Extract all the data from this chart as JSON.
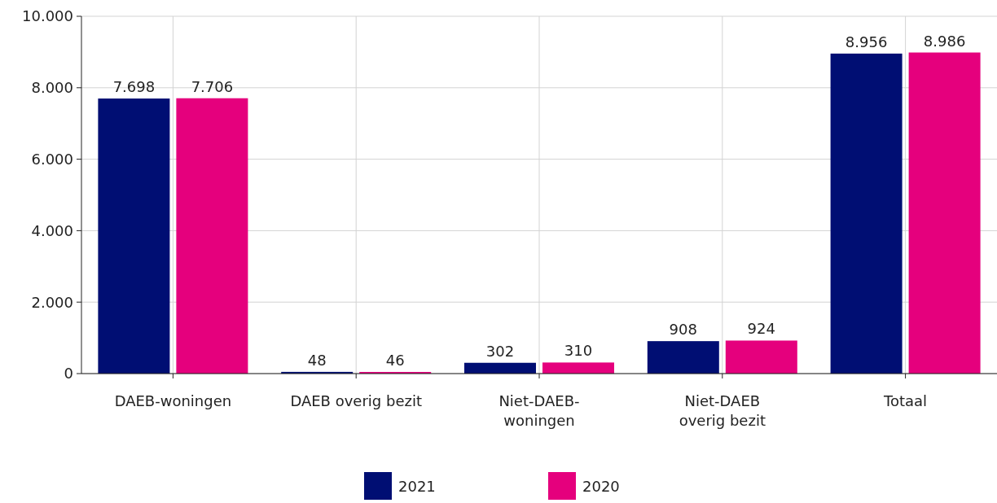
{
  "chart_data": {
    "type": "bar",
    "categories": [
      "DAEB-woningen",
      "DAEB overig bezit",
      "Niet-DAEB-woningen",
      "Niet-DAEB overig bezit",
      "Totaal"
    ],
    "series": [
      {
        "name": "2021",
        "color": "#000e73",
        "values": [
          7698,
          48,
          302,
          908,
          8956
        ],
        "value_labels": [
          "7.698",
          "48",
          "302",
          "908",
          "8.956"
        ]
      },
      {
        "name": "2020",
        "color": "#e5007d",
        "values": [
          7706,
          46,
          310,
          924,
          8986
        ],
        "value_labels": [
          "7.706",
          "46",
          "310",
          "924",
          "8.986"
        ]
      }
    ],
    "ylim": [
      0,
      10000
    ],
    "yticks": [
      {
        "value": 0,
        "label": "0"
      },
      {
        "value": 2000,
        "label": "2.000"
      },
      {
        "value": 4000,
        "label": "4.000"
      },
      {
        "value": 6000,
        "label": "6.000"
      },
      {
        "value": 8000,
        "label": "8.000"
      },
      {
        "value": 10000,
        "label": "10.000"
      }
    ],
    "grid": true,
    "legend": "bottom"
  }
}
